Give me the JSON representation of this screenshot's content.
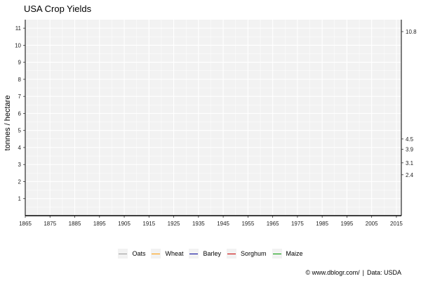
{
  "chart_data": {
    "type": "line",
    "title": "USA Crop Yields",
    "xlabel": "",
    "ylabel": "tonnes / hectare",
    "xlim": [
      1865,
      2017
    ],
    "ylim": [
      0,
      11.5
    ],
    "x_ticks": [
      1865,
      1875,
      1885,
      1895,
      1905,
      1915,
      1925,
      1935,
      1945,
      1955,
      1965,
      1975,
      1985,
      1995,
      2005,
      2015
    ],
    "y_ticks": [
      1,
      2,
      3,
      4,
      5,
      6,
      7,
      8,
      9,
      10,
      11
    ],
    "right_axis_labels": [
      {
        "text": "10.8",
        "value": 10.8
      },
      {
        "text": "4.5",
        "value": 4.5
      },
      {
        "text": "3.9",
        "value": 3.9
      },
      {
        "text": "3.1",
        "value": 3.1
      },
      {
        "text": "2.4",
        "value": 2.4
      }
    ],
    "series": [
      {
        "name": "Oats",
        "color": "#999999",
        "values": []
      },
      {
        "name": "Wheat",
        "color": "#ff9900",
        "values": []
      },
      {
        "name": "Barley",
        "color": "#000099",
        "values": []
      },
      {
        "name": "Sorghum",
        "color": "#cc0000",
        "values": []
      },
      {
        "name": "Maize",
        "color": "#009900",
        "values": []
      }
    ],
    "grid": true,
    "legend_position": "bottom"
  },
  "caption": {
    "source": "© www.dblogr.com/",
    "separator": "|",
    "data_credit": "Data: USDA"
  }
}
